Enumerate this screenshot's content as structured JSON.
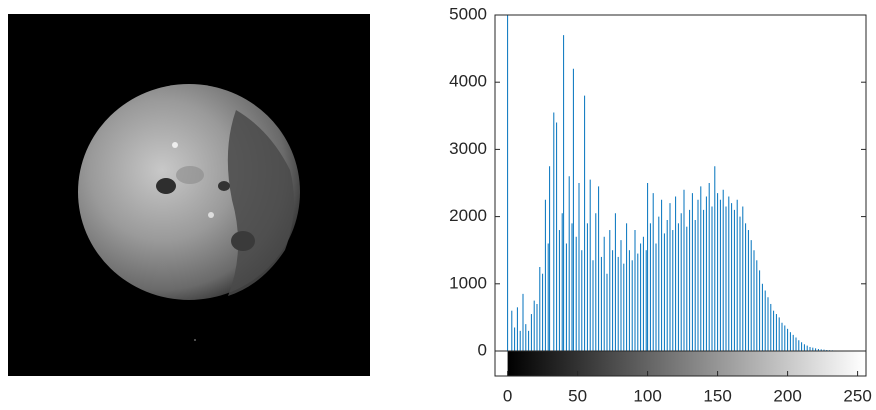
{
  "chart_data": {
    "type": "histogram",
    "color": "#0072bd",
    "xlim": [
      -9,
      256
    ],
    "ylim": [
      0,
      5000
    ],
    "xticks": [
      0,
      50,
      100,
      150,
      200,
      250
    ],
    "yticks": [
      0,
      1000,
      2000,
      3000,
      4000,
      5000
    ],
    "x": [
      0,
      1,
      2,
      3,
      4,
      5,
      6,
      7,
      8,
      9,
      10,
      11,
      12,
      13,
      14,
      15,
      16,
      17,
      18,
      19,
      20,
      21,
      22,
      23,
      24,
      25,
      26,
      27,
      28,
      29,
      30,
      31,
      32,
      33,
      34,
      35,
      36,
      37,
      38,
      39,
      40,
      41,
      42,
      43,
      44,
      45,
      46,
      47,
      48,
      49,
      50,
      51,
      52,
      53,
      54,
      55,
      56,
      57,
      58,
      59,
      60,
      61,
      62,
      63,
      64,
      65,
      66,
      67,
      68,
      69,
      70,
      71,
      72,
      73,
      74,
      75,
      76,
      77,
      78,
      79,
      80,
      81,
      82,
      83,
      84,
      85,
      86,
      87,
      88,
      89,
      90,
      91,
      92,
      93,
      94,
      95,
      96,
      97,
      98,
      99,
      100,
      101,
      102,
      103,
      104,
      105,
      106,
      107,
      108,
      109,
      110,
      111,
      112,
      113,
      114,
      115,
      116,
      117,
      118,
      119,
      120,
      121,
      122,
      123,
      124,
      125,
      126,
      127,
      128,
      129,
      130,
      131,
      132,
      133,
      134,
      135,
      136,
      137,
      138,
      139,
      140,
      141,
      142,
      143,
      144,
      145,
      146,
      147,
      148,
      149,
      150,
      151,
      152,
      153,
      154,
      155,
      156,
      157,
      158,
      159,
      160,
      161,
      162,
      163,
      164,
      165,
      166,
      167,
      168,
      169,
      170,
      171,
      172,
      173,
      174,
      175,
      176,
      177,
      178,
      179,
      180,
      181,
      182,
      183,
      184,
      185,
      186,
      187,
      188,
      189,
      190,
      191,
      192,
      193,
      194,
      195,
      196,
      197,
      198,
      199,
      200,
      201,
      202,
      203,
      204,
      205,
      206,
      207,
      208,
      209,
      210,
      211,
      212,
      213,
      214,
      215,
      216,
      217,
      218,
      219,
      220,
      221,
      222,
      223,
      224,
      225,
      226,
      227,
      228,
      229,
      230,
      231,
      232,
      233,
      234,
      235,
      236,
      237,
      238,
      239,
      240,
      241,
      242,
      243,
      244,
      245,
      246,
      247,
      248,
      249,
      250,
      251,
      252,
      253,
      254,
      255
    ],
    "values": [
      5000,
      0,
      0,
      600,
      0,
      350,
      0,
      650,
      0,
      300,
      0,
      850,
      0,
      400,
      0,
      300,
      0,
      550,
      0,
      750,
      0,
      700,
      0,
      1250,
      0,
      1150,
      0,
      2250,
      0,
      1600,
      2750,
      0,
      0,
      3550,
      0,
      3400,
      0,
      1800,
      0,
      2050,
      4700,
      0,
      1600,
      0,
      2600,
      0,
      1900,
      4200,
      0,
      1700,
      0,
      2500,
      0,
      1500,
      0,
      3800,
      0,
      1900,
      0,
      2550,
      0,
      1350,
      0,
      2050,
      0,
      2450,
      0,
      1400,
      0,
      1700,
      0,
      1150,
      0,
      1800,
      0,
      1500,
      0,
      2050,
      0,
      1400,
      0,
      1650,
      0,
      1300,
      0,
      1900,
      0,
      1500,
      0,
      1350,
      0,
      1800,
      0,
      1450,
      0,
      1600,
      0,
      1700,
      0,
      1500,
      2500,
      0,
      1900,
      0,
      2350,
      0,
      1600,
      0,
      2000,
      0,
      2250,
      0,
      1750,
      0,
      1950,
      0,
      2200,
      0,
      1800,
      0,
      2300,
      0,
      1900,
      0,
      2050,
      0,
      2400,
      0,
      1850,
      0,
      2100,
      0,
      2350,
      0,
      1950,
      0,
      2250,
      0,
      2450,
      0,
      2100,
      0,
      2300,
      0,
      2500,
      0,
      2150,
      0,
      2750,
      0,
      2350,
      0,
      2250,
      0,
      2400,
      0,
      2150,
      0,
      2300,
      0,
      2200,
      0,
      2100,
      0,
      2250,
      0,
      2000,
      0,
      2150,
      0,
      1900,
      0,
      1800,
      0,
      1650,
      0,
      1500,
      0,
      1350,
      0,
      1200,
      0,
      1000,
      0,
      900,
      0,
      800,
      0,
      700,
      0,
      600,
      0,
      550,
      0,
      500,
      0,
      420,
      0,
      380,
      0,
      330,
      0,
      280,
      0,
      240,
      0,
      200,
      0,
      160,
      0,
      130,
      0,
      100,
      0,
      80,
      0,
      60,
      0,
      50,
      0,
      40,
      0,
      30,
      0,
      25,
      0,
      20,
      0,
      15,
      0,
      12,
      0,
      10,
      0,
      8,
      0,
      6,
      0,
      5,
      0,
      4,
      0,
      3,
      0,
      2,
      0,
      2,
      0,
      1,
      0,
      1,
      0,
      0,
      0,
      0,
      0
    ]
  }
}
